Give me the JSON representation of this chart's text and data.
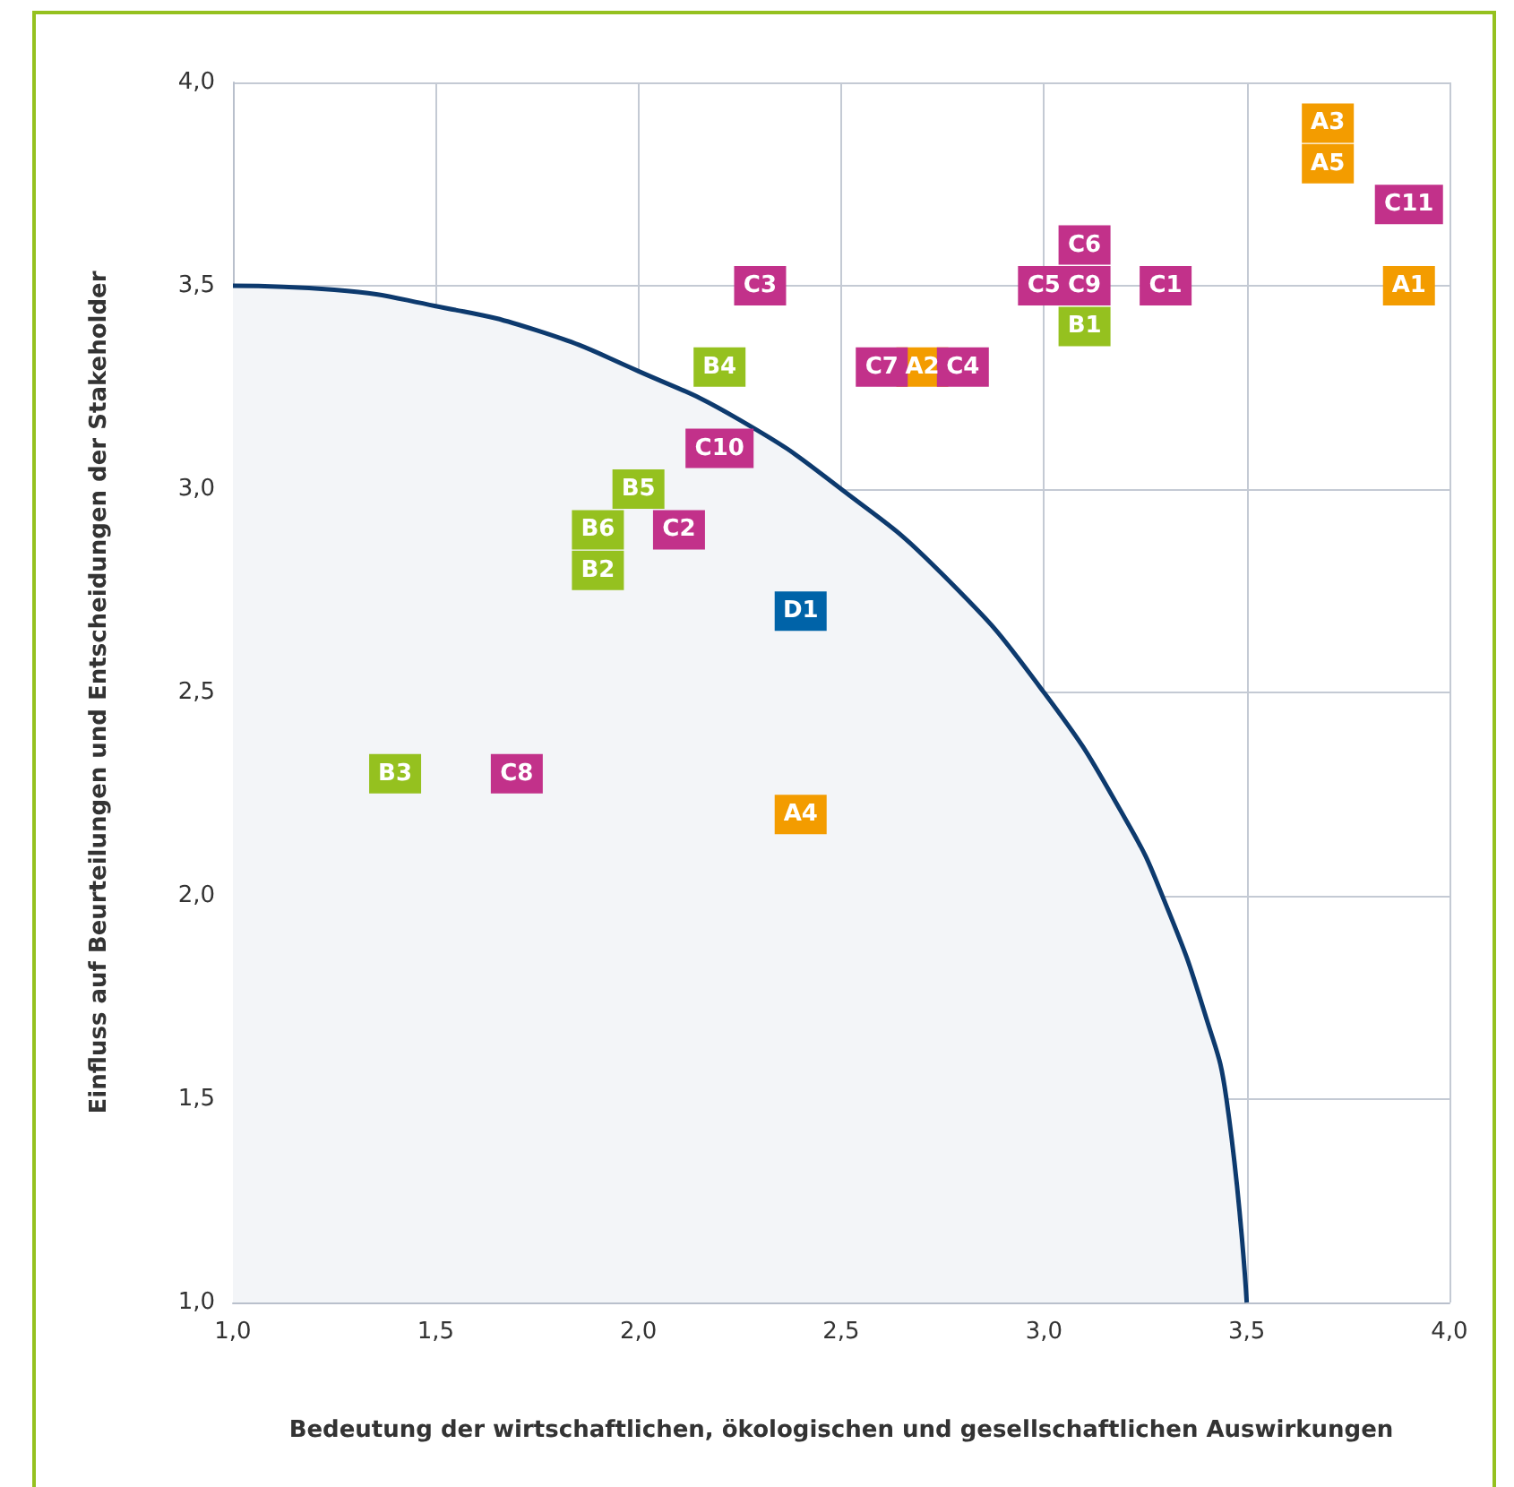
{
  "chart_data": {
    "type": "scatter",
    "xlabel": "Bedeutung der wirtschaftlichen, ökologischen und gesellschaftlichen Auswirkungen",
    "ylabel": "Einfluss auf Beurteilungen und Entscheidungen der Stakeholder",
    "xlim": [
      1,
      4
    ],
    "ylim": [
      1,
      4
    ],
    "xticks": [
      {
        "value": 1,
        "label": "1,0"
      },
      {
        "value": 1.5,
        "label": "1,5"
      },
      {
        "value": 2,
        "label": "2,0"
      },
      {
        "value": 2.5,
        "label": "2,5"
      },
      {
        "value": 3,
        "label": "3,0"
      },
      {
        "value": 3.5,
        "label": "3,5"
      },
      {
        "value": 4,
        "label": "4,0"
      }
    ],
    "yticks": [
      {
        "value": 1,
        "label": "1,0"
      },
      {
        "value": 1.5,
        "label": "1,5"
      },
      {
        "value": 2,
        "label": "2,0"
      },
      {
        "value": 2.5,
        "label": "2,5"
      },
      {
        "value": 3,
        "label": "3,0"
      },
      {
        "value": 3.5,
        "label": "3,5"
      },
      {
        "value": 4,
        "label": "4,0"
      }
    ],
    "grid": true,
    "series": [
      {
        "type": "area",
        "marker": "none",
        "color": "#0d3a6e",
        "x": [
          1,
          1.25,
          1.5,
          1.75,
          2,
          2.25,
          2.5,
          2.75,
          3,
          3.2,
          3.3,
          3.4,
          3.45,
          3.5
        ],
        "values": [
          3.5,
          3.49,
          3.45,
          3.39,
          3.29,
          3.17,
          3,
          2.79,
          2.5,
          2.19,
          1.98,
          1.7,
          1.5,
          1
        ]
      },
      {
        "marker": "square",
        "color": "#f39c00",
        "x": [
          3.9,
          2.7,
          3.7,
          2.4,
          3.7
        ],
        "values": [
          3.5,
          3.3,
          3.9,
          2.2,
          3.8
        ],
        "value_labels": [
          "A1",
          "A2",
          "A3",
          "A4",
          "A5"
        ]
      },
      {
        "marker": "square",
        "color": "#95c11f",
        "x": [
          3.1,
          1.9,
          1.4,
          2.2,
          2.0,
          1.9
        ],
        "values": [
          3.4,
          2.8,
          2.3,
          3.3,
          3.0,
          2.9
        ],
        "value_labels": [
          "B1",
          "B2",
          "B3",
          "B4",
          "B5",
          "B6"
        ]
      },
      {
        "marker": "square",
        "color": "#c2318a",
        "x": [
          3.3,
          2.1,
          2.3,
          2.8,
          3.0,
          3.1,
          2.6,
          1.7,
          3.1,
          2.2,
          3.9
        ],
        "values": [
          3.5,
          2.9,
          3.5,
          3.3,
          3.5,
          3.6,
          3.3,
          2.3,
          3.5,
          3.1,
          3.7
        ],
        "value_labels": [
          "C1",
          "C2",
          "C3",
          "C4",
          "C5",
          "C6",
          "C7",
          "C8",
          "C9",
          "C10",
          "C11"
        ]
      },
      {
        "marker": "square",
        "color": "#0063a8",
        "x": [
          2.4
        ],
        "values": [
          2.7
        ],
        "value_labels": [
          "D1"
        ]
      }
    ]
  }
}
